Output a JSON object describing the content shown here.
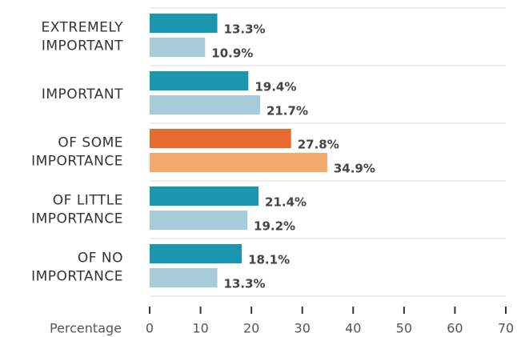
{
  "chart_data": {
    "type": "hbar",
    "categories": [
      [
        "EXTREMELY",
        "IMPORTANT"
      ],
      [
        "IMPORTANT"
      ],
      [
        "OF SOME",
        "IMPORTANCE"
      ],
      [
        "OF LITTLE",
        "IMPORTANCE"
      ],
      [
        "OF NO",
        "IMPORTANCE"
      ]
    ],
    "series": [
      {
        "values": [
          13.3,
          19.4,
          27.8,
          21.4,
          18.1
        ],
        "value_labels": [
          "13.3%",
          "19.4%",
          "27.8%",
          "21.4%",
          "18.1%"
        ],
        "colors": [
          "#1a96b0",
          "#1a96b0",
          "#e86a30",
          "#1a96b0",
          "#1a96b0"
        ]
      },
      {
        "values": [
          10.9,
          21.7,
          34.9,
          19.2,
          13.3
        ],
        "value_labels": [
          "10.9%",
          "21.7%",
          "34.9%",
          "19.2%",
          "13.3%"
        ],
        "colors": [
          "#a7ccd9",
          "#a7ccd9",
          "#f3a96a",
          "#a7ccd9",
          "#a7ccd9"
        ]
      }
    ],
    "xlabel": "Percentage",
    "xlim": [
      0,
      70
    ],
    "xticks": [
      0,
      10,
      20,
      30,
      40,
      50,
      60,
      70
    ]
  }
}
